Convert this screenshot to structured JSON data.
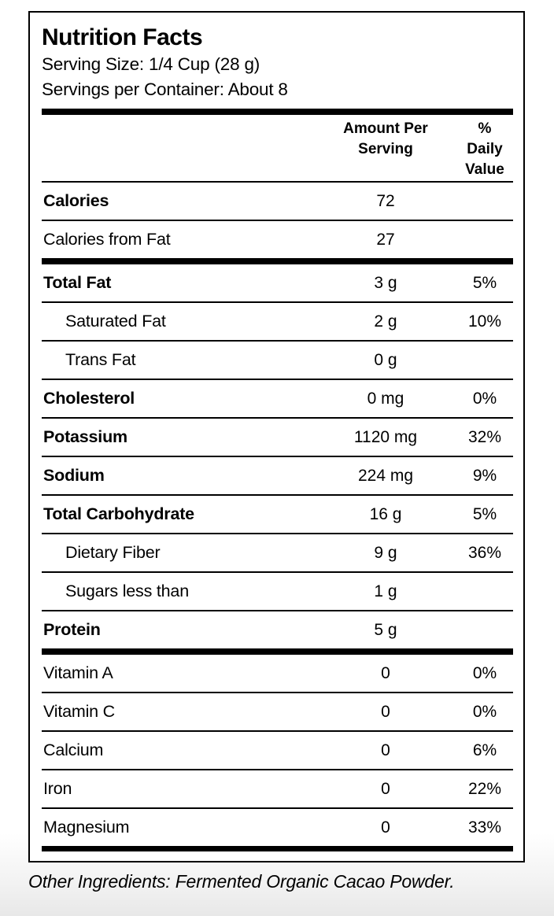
{
  "label": {
    "title": "Nutrition Facts",
    "serving_size": "Serving Size: 1/4 Cup (28 g)",
    "servings_per_container": "Servings per Container: About 8",
    "columns": {
      "amount_header": "Amount Per\nServing",
      "percent_header": "%\nDaily\nValue"
    },
    "rows": [
      {
        "name": "Calories",
        "amount": "72",
        "percent": ""
      },
      {
        "name": "Calories from Fat",
        "amount": "27",
        "percent": ""
      },
      {
        "name": "Total Fat",
        "amount": "3 g",
        "percent": "5%"
      },
      {
        "name": "Saturated Fat",
        "amount": "2 g",
        "percent": "10%"
      },
      {
        "name": "Trans Fat",
        "amount": "0 g",
        "percent": ""
      },
      {
        "name": "Cholesterol",
        "amount": "0 mg",
        "percent": "0%"
      },
      {
        "name": "Potassium",
        "amount": "1120 mg",
        "percent": "32%"
      },
      {
        "name": "Sodium",
        "amount": "224 mg",
        "percent": "9%"
      },
      {
        "name": "Total Carbohydrate",
        "amount": "16 g",
        "percent": "5%"
      },
      {
        "name": "Dietary Fiber",
        "amount": "9 g",
        "percent": "36%"
      },
      {
        "name": "Sugars less than",
        "amount": "1 g",
        "percent": ""
      },
      {
        "name": "Protein",
        "amount": "5 g",
        "percent": ""
      },
      {
        "name": "Vitamin A",
        "amount": "0",
        "percent": "0%"
      },
      {
        "name": "Vitamin C",
        "amount": "0",
        "percent": "0%"
      },
      {
        "name": "Calcium",
        "amount": "0",
        "percent": "6%"
      },
      {
        "name": "Iron",
        "amount": "0",
        "percent": "22%"
      },
      {
        "name": "Magnesium",
        "amount": "0",
        "percent": "33%"
      }
    ]
  },
  "footer": {
    "other_ingredients": "Other Ingredients: Fermented Organic Cacao Powder."
  },
  "colors": {
    "text": "#000000",
    "rule": "#000000",
    "background": "#ffffff",
    "page_bottom_tint": "#e8e8e8"
  }
}
